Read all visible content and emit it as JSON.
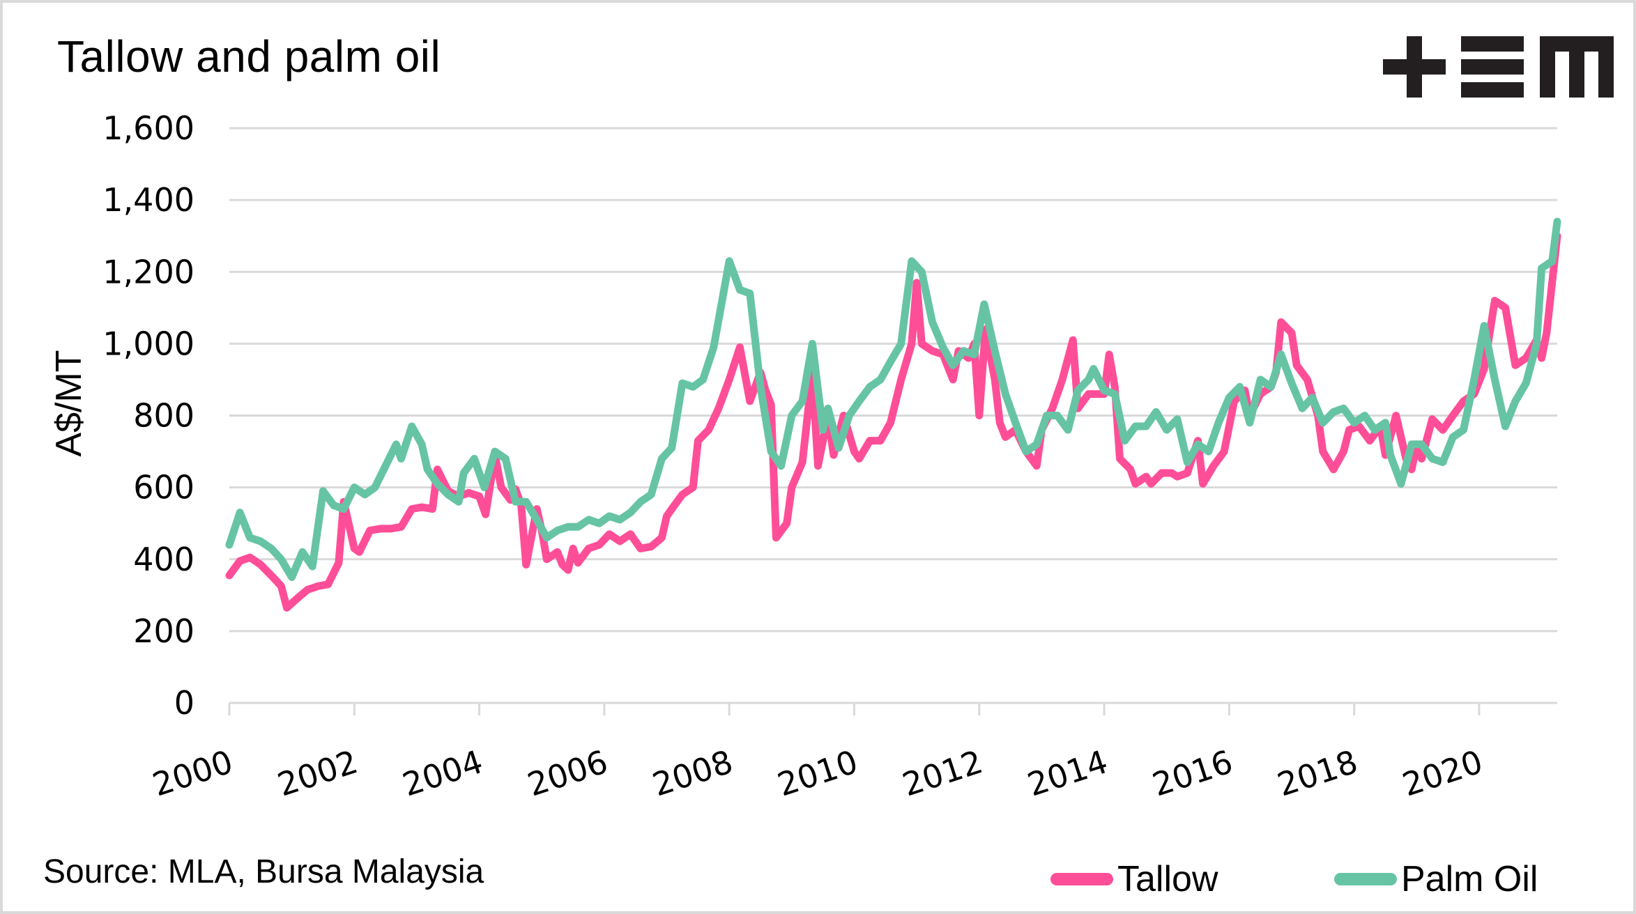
{
  "logo": {
    "icon": "tem-logo-icon"
  },
  "source_note": "Source: MLA, Bursa Malaysia",
  "chart_data": {
    "type": "line",
    "title": "Tallow and palm oil",
    "xlabel": "",
    "ylabel": "A$/MT",
    "xlim": [
      2000,
      2021.25
    ],
    "ylim": [
      0,
      1600
    ],
    "yticks": [
      0,
      200,
      400,
      600,
      800,
      1000,
      1200,
      1400,
      1600
    ],
    "ytick_labels": [
      "0",
      "200",
      "400",
      "600",
      "800",
      "1,000",
      "1,200",
      "1,400",
      "1,600"
    ],
    "xticks": [
      2000,
      2002,
      2004,
      2006,
      2008,
      2010,
      2012,
      2014,
      2016,
      2018,
      2020
    ],
    "xtick_labels": [
      "2000",
      "2002",
      "2004",
      "2006",
      "2008",
      "2010",
      "2012",
      "2014",
      "2016",
      "2018",
      "2020"
    ],
    "grid": true,
    "legend_position": "bottom-right",
    "series": [
      {
        "name": "Tallow",
        "color": "#FF4E98",
        "x": [
          2000.0,
          2000.17,
          2000.33,
          2000.5,
          2000.67,
          2000.83,
          2000.92,
          2001.08,
          2001.25,
          2001.42,
          2001.58,
          2001.75,
          2001.83,
          2002.0,
          2002.08,
          2002.25,
          2002.42,
          2002.58,
          2002.75,
          2002.92,
          2003.08,
          2003.25,
          2003.33,
          2003.5,
          2003.67,
          2003.83,
          2004.0,
          2004.1,
          2004.25,
          2004.35,
          2004.5,
          2004.58,
          2004.67,
          2004.75,
          2004.92,
          2005.0,
          2005.08,
          2005.25,
          2005.33,
          2005.42,
          2005.5,
          2005.58,
          2005.75,
          2005.92,
          2006.08,
          2006.25,
          2006.42,
          2006.58,
          2006.75,
          2006.92,
          2007.0,
          2007.08,
          2007.25,
          2007.42,
          2007.5,
          2007.67,
          2007.83,
          2008.0,
          2008.17,
          2008.33,
          2008.5,
          2008.58,
          2008.67,
          2008.75,
          2008.92,
          2009.0,
          2009.17,
          2009.33,
          2009.42,
          2009.58,
          2009.67,
          2009.83,
          2010.0,
          2010.08,
          2010.25,
          2010.42,
          2010.58,
          2010.75,
          2010.92,
          2011.0,
          2011.08,
          2011.25,
          2011.42,
          2011.58,
          2011.67,
          2011.83,
          2011.92,
          2012.0,
          2012.1,
          2012.25,
          2012.33,
          2012.42,
          2012.58,
          2012.75,
          2012.92,
          2013.0,
          2013.17,
          2013.33,
          2013.5,
          2013.58,
          2013.75,
          2013.92,
          2014.0,
          2014.08,
          2014.17,
          2014.25,
          2014.42,
          2014.5,
          2014.67,
          2014.75,
          2014.92,
          2015.08,
          2015.17,
          2015.33,
          2015.5,
          2015.58,
          2015.75,
          2015.92,
          2016.08,
          2016.25,
          2016.33,
          2016.5,
          2016.67,
          2016.75,
          2016.83,
          2017.0,
          2017.08,
          2017.25,
          2017.42,
          2017.5,
          2017.67,
          2017.83,
          2017.92,
          2018.08,
          2018.25,
          2018.42,
          2018.5,
          2018.67,
          2018.83,
          2018.92,
          2019.0,
          2019.08,
          2019.25,
          2019.42,
          2019.58,
          2019.75,
          2019.92,
          2020.08,
          2020.25,
          2020.42,
          2020.58,
          2020.75,
          2020.92,
          2021.0,
          2021.08,
          2021.25
        ],
        "values": [
          355,
          395,
          405,
          385,
          355,
          325,
          265,
          290,
          315,
          325,
          330,
          390,
          560,
          430,
          420,
          480,
          485,
          485,
          490,
          540,
          545,
          540,
          650,
          590,
          575,
          585,
          575,
          525,
          690,
          600,
          565,
          595,
          550,
          385,
          540,
          480,
          400,
          420,
          385,
          370,
          430,
          390,
          430,
          440,
          470,
          450,
          470,
          430,
          435,
          460,
          520,
          540,
          580,
          600,
          730,
          760,
          820,
          900,
          990,
          840,
          920,
          870,
          830,
          460,
          500,
          600,
          670,
          920,
          660,
          800,
          690,
          800,
          700,
          680,
          730,
          730,
          780,
          900,
          1000,
          1170,
          1000,
          980,
          970,
          900,
          980,
          960,
          1000,
          800,
          1040,
          900,
          780,
          740,
          760,
          700,
          660,
          760,
          820,
          900,
          1010,
          820,
          860,
          860,
          860,
          970,
          880,
          680,
          650,
          610,
          630,
          610,
          640,
          640,
          630,
          640,
          730,
          610,
          660,
          700,
          840,
          870,
          800,
          860,
          880,
          920,
          1060,
          1030,
          940,
          900,
          800,
          700,
          650,
          700,
          760,
          770,
          730,
          770,
          690,
          800,
          680,
          650,
          720,
          680,
          790,
          760,
          800,
          840,
          860,
          930,
          1120,
          1100,
          940,
          960,
          1010,
          960,
          1030,
          1300
        ]
      },
      {
        "name": "Palm Oil",
        "color": "#66C4A4",
        "x": [
          2000.0,
          2000.17,
          2000.33,
          2000.5,
          2000.67,
          2000.83,
          2001.0,
          2001.17,
          2001.33,
          2001.5,
          2001.67,
          2001.83,
          2002.0,
          2002.17,
          2002.33,
          2002.5,
          2002.67,
          2002.75,
          2002.92,
          2003.08,
          2003.17,
          2003.33,
          2003.5,
          2003.67,
          2003.75,
          2003.92,
          2004.08,
          2004.25,
          2004.42,
          2004.58,
          2004.75,
          2004.92,
          2005.08,
          2005.25,
          2005.42,
          2005.58,
          2005.75,
          2005.92,
          2006.08,
          2006.25,
          2006.42,
          2006.58,
          2006.75,
          2006.92,
          2007.08,
          2007.25,
          2007.42,
          2007.58,
          2007.75,
          2008.0,
          2008.17,
          2008.33,
          2008.5,
          2008.67,
          2008.83,
          2009.0,
          2009.17,
          2009.33,
          2009.5,
          2009.58,
          2009.75,
          2009.92,
          2010.08,
          2010.25,
          2010.42,
          2010.58,
          2010.75,
          2010.92,
          2011.08,
          2011.25,
          2011.42,
          2011.58,
          2011.75,
          2011.92,
          2012.08,
          2012.25,
          2012.42,
          2012.58,
          2012.75,
          2012.92,
          2013.08,
          2013.25,
          2013.42,
          2013.58,
          2013.75,
          2013.83,
          2014.0,
          2014.17,
          2014.33,
          2014.5,
          2014.67,
          2014.83,
          2015.0,
          2015.17,
          2015.33,
          2015.5,
          2015.67,
          2015.83,
          2016.0,
          2016.17,
          2016.33,
          2016.5,
          2016.67,
          2016.83,
          2017.0,
          2017.17,
          2017.33,
          2017.5,
          2017.67,
          2017.83,
          2018.0,
          2018.17,
          2018.33,
          2018.5,
          2018.58,
          2018.75,
          2018.92,
          2019.08,
          2019.25,
          2019.42,
          2019.58,
          2019.75,
          2019.92,
          2020.08,
          2020.25,
          2020.42,
          2020.58,
          2020.75,
          2020.92,
          2021.0,
          2021.17,
          2021.25
        ],
        "values": [
          440,
          530,
          460,
          450,
          430,
          400,
          350,
          420,
          380,
          590,
          550,
          540,
          600,
          580,
          600,
          660,
          720,
          680,
          770,
          720,
          650,
          610,
          580,
          560,
          640,
          680,
          600,
          700,
          680,
          560,
          560,
          510,
          460,
          480,
          490,
          490,
          510,
          500,
          520,
          510,
          530,
          560,
          580,
          680,
          710,
          890,
          880,
          900,
          990,
          1230,
          1150,
          1140,
          880,
          700,
          660,
          800,
          840,
          1000,
          760,
          820,
          710,
          800,
          840,
          880,
          900,
          950,
          1000,
          1230,
          1200,
          1060,
          990,
          940,
          980,
          970,
          1110,
          980,
          860,
          780,
          700,
          720,
          800,
          800,
          760,
          870,
          900,
          930,
          870,
          860,
          730,
          770,
          770,
          810,
          760,
          790,
          670,
          720,
          700,
          780,
          850,
          880,
          780,
          900,
          880,
          970,
          890,
          820,
          850,
          780,
          810,
          820,
          780,
          800,
          760,
          780,
          690,
          610,
          720,
          720,
          680,
          670,
          740,
          760,
          900,
          1050,
          900,
          770,
          840,
          890,
          1000,
          1210,
          1230,
          1340
        ]
      }
    ]
  },
  "legend": [
    {
      "label": "Tallow",
      "color": "#FF4E98"
    },
    {
      "label": "Palm Oil",
      "color": "#66C4A4"
    }
  ]
}
